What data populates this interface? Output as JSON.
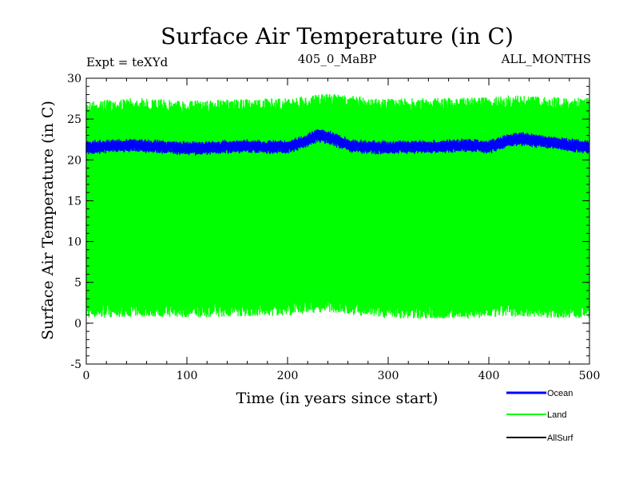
{
  "chart_data": {
    "type": "line",
    "title": "Surface Air Temperature (in C)",
    "subtitle_left": "Expt = teXYd",
    "subtitle_center": "405_0_MaBP",
    "subtitle_right": "ALL_MONTHS",
    "xlabel": "Time (in years since start)",
    "ylabel": "Surface Air Temperature (in C)",
    "xlim": [
      0,
      500
    ],
    "ylim": [
      -5,
      30
    ],
    "x_ticks": [
      0,
      100,
      200,
      300,
      400,
      500
    ],
    "y_ticks": [
      -5,
      0,
      5,
      10,
      15,
      20,
      25,
      30
    ],
    "x_minor_step": 20,
    "y_minor_step": 1,
    "grid": false,
    "legend_position": "bottom-right, outside plot",
    "series": [
      {
        "name": "Land",
        "color": "#00ff00",
        "style": "dense seasonal band",
        "band_max_years": [
          0,
          50,
          100,
          150,
          200,
          220,
          240,
          260,
          300,
          350,
          400,
          420,
          450,
          500
        ],
        "band_max_values": [
          27.2,
          27.6,
          27.3,
          27.4,
          27.6,
          27.8,
          28.2,
          27.9,
          27.5,
          27.6,
          27.7,
          27.9,
          27.8,
          27.6
        ],
        "band_min_years": [
          0,
          50,
          100,
          150,
          200,
          220,
          240,
          260,
          300,
          350,
          400,
          420,
          450,
          500
        ],
        "band_min_values": [
          0.6,
          0.8,
          0.7,
          0.8,
          0.9,
          1.2,
          1.4,
          1.0,
          0.6,
          0.5,
          0.6,
          0.8,
          0.7,
          0.6
        ]
      },
      {
        "name": "Ocean",
        "color": "#0000ff",
        "style": "thick seasonal band",
        "band_years": [
          0,
          25,
          50,
          75,
          100,
          125,
          150,
          175,
          200,
          215,
          230,
          245,
          260,
          275,
          300,
          325,
          350,
          375,
          400,
          415,
          430,
          450,
          475,
          500
        ],
        "band_mean_values": [
          21.5,
          21.7,
          21.8,
          21.6,
          21.4,
          21.5,
          21.7,
          21.6,
          21.6,
          22.2,
          23.0,
          22.6,
          21.8,
          21.6,
          21.5,
          21.6,
          21.6,
          21.8,
          21.6,
          22.2,
          22.6,
          22.3,
          21.9,
          21.6
        ],
        "band_half_width": 0.55
      },
      {
        "name": "AllSurf",
        "color": "#000000",
        "style": "line",
        "values_note": ""
      }
    ]
  }
}
